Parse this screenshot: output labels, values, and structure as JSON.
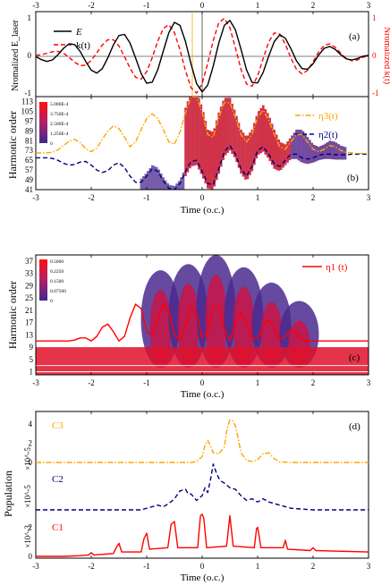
{
  "chart_data": [
    {
      "type": "line",
      "panel_label": "(a)",
      "ylabel_left": "Nromalized E_laser",
      "ylabel_right": "Nromalized k(t)",
      "xlim": [
        -3,
        3
      ],
      "ylim": [
        -1,
        1
      ],
      "x_ticks": [
        "-3",
        "-2",
        "-1",
        "0",
        "1",
        "2",
        "3"
      ],
      "y_ticks_left": [
        "-1",
        "0",
        "1"
      ],
      "y_ticks_right": [
        "-1",
        "0",
        "1"
      ],
      "series": [
        {
          "name": "E",
          "style": "solid",
          "color": "#000000",
          "x": [
            -3.0,
            -2.9,
            -2.8,
            -2.7,
            -2.6,
            -2.5,
            -2.4,
            -2.3,
            -2.2,
            -2.1,
            -2.0,
            -1.9,
            -1.8,
            -1.7,
            -1.6,
            -1.5,
            -1.4,
            -1.3,
            -1.2,
            -1.1,
            -1.0,
            -0.9,
            -0.8,
            -0.7,
            -0.6,
            -0.5,
            -0.4,
            -0.3,
            -0.2,
            -0.1,
            0.0,
            0.1,
            0.2,
            0.3,
            0.4,
            0.5,
            0.6,
            0.7,
            0.8,
            0.9,
            1.0,
            1.1,
            1.2,
            1.3,
            1.4,
            1.5,
            1.6,
            1.7,
            1.8,
            1.9,
            2.0,
            2.1,
            2.2,
            2.3,
            2.4,
            2.5,
            2.6,
            2.7,
            2.8,
            2.9,
            3.0
          ],
          "y": [
            -0.03,
            -0.11,
            -0.16,
            -0.12,
            0.02,
            0.19,
            0.31,
            0.29,
            0.11,
            -0.16,
            -0.39,
            -0.47,
            -0.35,
            -0.06,
            0.28,
            0.53,
            0.56,
            0.33,
            -0.07,
            -0.48,
            -0.74,
            -0.71,
            -0.38,
            0.12,
            0.61,
            0.88,
            0.8,
            0.37,
            -0.23,
            -0.75,
            -0.97,
            -0.79,
            -0.28,
            0.33,
            0.8,
            0.93,
            0.68,
            0.17,
            -0.38,
            -0.72,
            -0.73,
            -0.45,
            -0.02,
            0.37,
            0.55,
            0.46,
            0.18,
            -0.14,
            -0.35,
            -0.37,
            -0.22,
            0.01,
            0.19,
            0.24,
            0.16,
            0.02,
            -0.09,
            -0.12,
            -0.08,
            -0.02,
            0.0
          ]
        },
        {
          "name": "k(t)",
          "style": "dashed",
          "color": "#ff0000",
          "x": [
            -3.0,
            -2.9,
            -2.8,
            -2.7,
            -2.6,
            -2.5,
            -2.4,
            -2.3,
            -2.2,
            -2.1,
            -2.0,
            -1.9,
            -1.8,
            -1.7,
            -1.6,
            -1.5,
            -1.4,
            -1.3,
            -1.2,
            -1.1,
            -1.0,
            -0.9,
            -0.8,
            -0.7,
            -0.6,
            -0.5,
            -0.4,
            -0.3,
            -0.2,
            -0.1,
            0.0,
            0.1,
            0.2,
            0.3,
            0.4,
            0.5,
            0.6,
            0.7,
            0.8,
            0.9,
            1.0,
            1.1,
            1.2,
            1.3,
            1.4,
            1.5,
            1.6,
            1.7,
            1.8,
            1.9,
            2.0,
            2.1,
            2.2,
            2.3,
            2.4,
            2.5,
            2.6,
            2.7,
            2.8,
            2.9,
            3.0
          ],
          "y": [
            0.0,
            0.02,
            0.06,
            0.1,
            0.11,
            0.06,
            -0.05,
            -0.18,
            -0.27,
            -0.26,
            -0.13,
            0.07,
            0.28,
            0.42,
            0.42,
            0.25,
            -0.03,
            -0.34,
            -0.58,
            -0.63,
            -0.43,
            -0.06,
            0.38,
            0.72,
            0.82,
            0.61,
            0.15,
            -0.41,
            -0.86,
            -1.0,
            -0.75,
            -0.21,
            0.4,
            0.87,
            0.99,
            0.74,
            0.2,
            -0.37,
            -0.76,
            -0.82,
            -0.55,
            -0.08,
            0.36,
            0.6,
            0.57,
            0.3,
            -0.07,
            -0.37,
            -0.49,
            -0.4,
            -0.17,
            0.09,
            0.27,
            0.31,
            0.22,
            0.06,
            -0.08,
            -0.14,
            -0.12,
            -0.05,
            0.0
          ]
        }
      ]
    },
    {
      "type": "heatmap",
      "panel_label": "(b)",
      "ylabel": "Harmonic order",
      "xlabel": "Time (o.c.)",
      "xlim": [
        -3,
        3
      ],
      "ylim": [
        41,
        117
      ],
      "x_ticks": [
        "-3",
        "-2",
        "-1",
        "0",
        "1",
        "2",
        "3"
      ],
      "y_ticks": [
        "41",
        "49",
        "57",
        "65",
        "73",
        "81",
        "89",
        "97",
        "105",
        "113"
      ],
      "colorbar": [
        "5.000E-4",
        "3.750E-4",
        "2.500E-4",
        "1.250E-4",
        "0"
      ],
      "series": [
        {
          "name": "η3(t)",
          "style": "dash-dot",
          "color": "#ffa500",
          "x": [
            -3.0,
            -2.9,
            -2.8,
            -2.7,
            -2.6,
            -2.5,
            -2.4,
            -2.3,
            -2.2,
            -2.1,
            -2.0,
            -1.9,
            -1.8,
            -1.7,
            -1.6,
            -1.5,
            -1.4,
            -1.3,
            -1.2,
            -1.1,
            -1.0,
            -0.9,
            -0.8,
            -0.7,
            -0.6,
            -0.5,
            -0.4,
            -0.3,
            -0.2,
            -0.1,
            0.0,
            0.1,
            0.2,
            0.3,
            0.4,
            0.5,
            0.6,
            0.7,
            0.8,
            0.9,
            1.0,
            1.1,
            1.2,
            1.3,
            1.4,
            1.5,
            1.6,
            1.7,
            1.8,
            1.9,
            2.0,
            2.1,
            2.2,
            2.3,
            2.4,
            2.5,
            2.6,
            2.7,
            2.8,
            2.9,
            3.0
          ],
          "y": [
            71.0,
            71.0,
            71.0,
            71.5,
            73.5,
            77.0,
            80.5,
            82.0,
            79.5,
            74.5,
            72.0,
            75.0,
            82.0,
            89.0,
            93.0,
            91.0,
            84.0,
            76.0,
            80.0,
            90.0,
            99.0,
            103.0,
            99.0,
            90.0,
            80.0,
            78.0,
            88.0,
            104.0,
            117.0,
            117.0,
            104.0,
            86.0,
            84.0,
            100.0,
            112.0,
            112.0,
            100.0,
            86.0,
            80.0,
            86.0,
            100.0,
            106.0,
            98.0,
            86.0,
            76.0,
            74.0,
            80.0,
            86.0,
            86.0,
            80.0,
            74.0,
            72.0,
            74.0,
            77.0,
            76.0,
            73.0,
            71.5,
            71.0,
            70.5,
            70.5,
            70.5
          ]
        },
        {
          "name": "η2(t)",
          "style": "dashed",
          "color": "#000080",
          "x": [
            -3.0,
            -2.9,
            -2.8,
            -2.7,
            -2.6,
            -2.5,
            -2.4,
            -2.3,
            -2.2,
            -2.1,
            -2.0,
            -1.9,
            -1.8,
            -1.7,
            -1.6,
            -1.5,
            -1.4,
            -1.3,
            -1.2,
            -1.1,
            -1.0,
            -0.9,
            -0.8,
            -0.7,
            -0.6,
            -0.5,
            -0.4,
            -0.3,
            -0.2,
            -0.1,
            0.0,
            0.1,
            0.2,
            0.3,
            0.4,
            0.5,
            0.6,
            0.7,
            0.8,
            0.9,
            1.0,
            1.1,
            1.2,
            1.3,
            1.4,
            1.5,
            1.6,
            1.7,
            1.8,
            1.9,
            2.0,
            2.1,
            2.2,
            2.3,
            2.4,
            2.5,
            2.6,
            2.7,
            2.8,
            2.9,
            3.0
          ],
          "y": [
            67.0,
            67.0,
            67.0,
            66.5,
            65.0,
            62.5,
            61.0,
            61.5,
            63.5,
            64.0,
            61.0,
            57.0,
            55.0,
            56.5,
            61.0,
            63.0,
            59.0,
            52.0,
            47.0,
            47.0,
            52.0,
            58.0,
            56.0,
            48.0,
            42.0,
            41.0,
            46.0,
            56.0,
            64.0,
            65.0,
            56.0,
            46.0,
            45.0,
            58.0,
            72.0,
            77.0,
            70.0,
            58.0,
            52.0,
            60.0,
            73.0,
            76.0,
            70.0,
            62.0,
            60.0,
            65.0,
            70.0,
            70.0,
            67.0,
            66.0,
            67.0,
            69.0,
            70.0,
            70.0,
            69.5,
            69.5,
            69.5,
            70.0,
            70.0,
            70.0,
            70.0
          ]
        }
      ]
    },
    {
      "type": "heatmap",
      "panel_label": "(c)",
      "ylabel": "Harmonic order",
      "xlabel": "Time (o.c.)",
      "xlim": [
        -3,
        3
      ],
      "ylim": [
        0,
        39
      ],
      "x_ticks": [
        "-3",
        "-2",
        "-1",
        "0",
        "1",
        "2",
        "3"
      ],
      "y_ticks": [
        "1",
        "5",
        "9",
        "13",
        "17",
        "21",
        "25",
        "29",
        "33",
        "37"
      ],
      "colorbar": [
        "0.5000",
        "0.2250",
        "0.1500",
        "0.07500",
        "0"
      ],
      "series": [
        {
          "name": "η1 (t)",
          "style": "solid",
          "color": "#ff0000",
          "x": [
            -3.0,
            -2.8,
            -2.6,
            -2.4,
            -2.3,
            -2.2,
            -2.1,
            -2.0,
            -1.9,
            -1.8,
            -1.7,
            -1.6,
            -1.5,
            -1.4,
            -1.3,
            -1.2,
            -1.1,
            -1.0,
            -0.9,
            -0.8,
            -0.7,
            -0.6,
            -0.5,
            -0.4,
            -0.3,
            -0.2,
            -0.1,
            0.0,
            0.1,
            0.2,
            0.3,
            0.4,
            0.5,
            0.6,
            0.7,
            0.8,
            0.9,
            1.0,
            1.1,
            1.2,
            1.3,
            1.4,
            1.5,
            1.6,
            1.7,
            1.8,
            1.9,
            2.0,
            2.2,
            2.4,
            2.6,
            2.8,
            3.0
          ],
          "y": [
            11.0,
            11.0,
            11.0,
            11.0,
            11.3,
            12.0,
            12.0,
            11.0,
            12.5,
            15.5,
            16.5,
            14.0,
            11.0,
            12.5,
            18.5,
            23.0,
            21.5,
            14.0,
            13.0,
            18.0,
            23.0,
            21.0,
            13.0,
            11.0,
            16.0,
            22.0,
            20.0,
            12.0,
            14.0,
            22.0,
            22.0,
            15.0,
            11.0,
            17.0,
            20.0,
            17.0,
            12.0,
            12.0,
            16.0,
            18.0,
            15.0,
            11.5,
            12.5,
            14.5,
            13.5,
            11.5,
            11.0,
            11.0,
            11.0,
            11.0,
            11.0,
            11.0,
            11.0
          ]
        }
      ]
    },
    {
      "type": "line",
      "panel_label": "(d)",
      "ylabel": "Population",
      "xlabel": "Time (o.c.)",
      "xlim": [
        -3,
        3
      ],
      "x_ticks": [
        "-3",
        "-2",
        "-1",
        "0",
        "1",
        "2",
        "3"
      ],
      "subplots": [
        {
          "name": "C3",
          "style": "dash-dot",
          "color": "#ffa500",
          "scale": "×10^-5",
          "y_ticks": [
            "0",
            "2",
            "4"
          ],
          "ylim": [
            0,
            5
          ],
          "x": [
            -3.0,
            -0.2,
            -0.1,
            0.0,
            0.05,
            0.1,
            0.15,
            0.2,
            0.3,
            0.4,
            0.45,
            0.5,
            0.55,
            0.6,
            0.65,
            0.7,
            0.8,
            0.9,
            1.0,
            1.1,
            1.2,
            1.3,
            1.4,
            1.6,
            3.0
          ],
          "y": [
            0.0,
            0.0,
            0.1,
            0.6,
            1.8,
            2.3,
            1.7,
            1.0,
            0.9,
            1.6,
            3.5,
            4.4,
            4.3,
            3.8,
            2.5,
            1.0,
            0.2,
            0.1,
            0.3,
            0.9,
            1.0,
            0.4,
            0.05,
            0.0,
            0.0
          ]
        },
        {
          "name": "C2",
          "style": "dashed",
          "color": "#000080",
          "scale": "×10^-5",
          "ylim": [
            0,
            3
          ],
          "x": [
            -3.0,
            -1.1,
            -1.0,
            -0.9,
            -0.8,
            -0.7,
            -0.6,
            -0.5,
            -0.4,
            -0.3,
            -0.25,
            -0.2,
            -0.1,
            0.0,
            0.05,
            0.1,
            0.15,
            0.2,
            0.25,
            0.3,
            0.35,
            0.4,
            0.5,
            0.6,
            0.7,
            0.8,
            0.9,
            1.0,
            1.1,
            1.2,
            1.4,
            1.6,
            1.8,
            2.0,
            3.0
          ],
          "y": [
            0.0,
            0.0,
            0.1,
            0.2,
            0.3,
            0.2,
            0.4,
            0.7,
            1.2,
            1.3,
            1.0,
            1.0,
            0.6,
            0.9,
            1.4,
            1.1,
            1.9,
            2.9,
            2.4,
            2.0,
            1.8,
            1.7,
            1.4,
            1.3,
            0.9,
            0.6,
            0.7,
            0.5,
            0.7,
            0.5,
            0.3,
            0.1,
            0.05,
            0.0,
            0.0
          ]
        },
        {
          "name": "C1",
          "style": "solid",
          "color": "#ff0000",
          "scale": "×10^-3",
          "y_ticks": [
            "0",
            "2"
          ],
          "ylim": [
            0,
            3.2
          ],
          "x": [
            -3.0,
            -2.5,
            -2.2,
            -2.05,
            -2.0,
            -1.95,
            -1.6,
            -1.55,
            -1.5,
            -1.45,
            -1.1,
            -1.05,
            -1.0,
            -0.95,
            -0.62,
            -0.56,
            -0.5,
            -0.44,
            -0.08,
            -0.03,
            0.0,
            0.03,
            0.08,
            0.44,
            0.5,
            0.56,
            0.94,
            0.98,
            1.0,
            1.02,
            1.06,
            1.46,
            1.5,
            1.54,
            1.95,
            2.0,
            2.05,
            3.0
          ],
          "y": [
            0.0,
            0.0,
            0.05,
            0.1,
            0.25,
            0.1,
            0.2,
            0.6,
            0.9,
            0.3,
            0.3,
            1.2,
            1.6,
            0.5,
            0.6,
            2.2,
            2.4,
            0.6,
            0.6,
            2.8,
            2.9,
            2.6,
            0.6,
            0.7,
            2.8,
            0.7,
            0.6,
            1.9,
            2.0,
            1.6,
            0.6,
            0.6,
            1.1,
            0.5,
            0.4,
            0.6,
            0.4,
            0.3
          ]
        }
      ]
    }
  ]
}
